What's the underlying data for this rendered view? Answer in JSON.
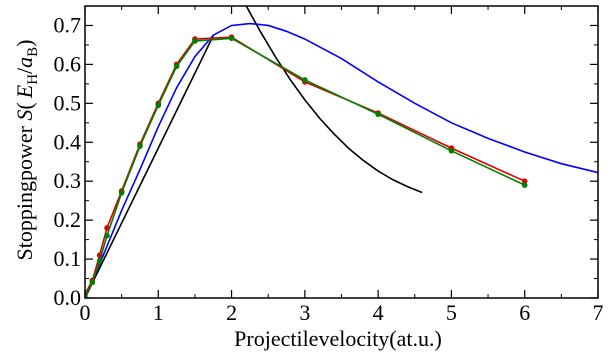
{
  "chart_data": {
    "type": "line",
    "xlabel": "Projectilevelocity(at.u.)",
    "ylabel_parts": {
      "prefix": "Stoppingpower  ",
      "S": "S",
      "open": "(",
      "E": "E",
      "E_sub": "H",
      "slash": "/",
      "a": "a",
      "a_sub": "B",
      "close": ")"
    },
    "xlim": [
      0,
      7
    ],
    "ylim": [
      0,
      0.75
    ],
    "x_ticks": [
      0,
      1,
      2,
      3,
      4,
      5,
      6,
      7
    ],
    "x_tick_labels": [
      "0",
      "1",
      "2",
      "3",
      "4",
      "5",
      "6",
      "7"
    ],
    "y_ticks": [
      0,
      0.1,
      0.2,
      0.3,
      0.4,
      0.5,
      0.6,
      0.7
    ],
    "y_tick_labels": [
      "0.0",
      "0.1",
      "0.2",
      "0.3",
      "0.4",
      "0.5",
      "0.6",
      "0.7"
    ],
    "grid": false,
    "series": [
      {
        "color": "#000000",
        "style": "line",
        "x": [
          0.0,
          0.2,
          0.4,
          0.6,
          0.8,
          1.0,
          1.2,
          1.4,
          1.6,
          1.75
        ],
        "y": [
          0.0,
          0.077,
          0.154,
          0.231,
          0.308,
          0.385,
          0.462,
          0.539,
          0.616,
          0.674
        ]
      },
      {
        "color": "#000000",
        "style": "line",
        "x": [
          2.2,
          2.4,
          2.6,
          2.8,
          3.0,
          3.2,
          3.4,
          3.6,
          3.8,
          4.0,
          4.2,
          4.4,
          4.6
        ],
        "y": [
          0.75,
          0.682,
          0.619,
          0.561,
          0.509,
          0.462,
          0.421,
          0.384,
          0.353,
          0.326,
          0.304,
          0.286,
          0.271
        ]
      },
      {
        "color": "#0000ff",
        "style": "line",
        "x": [
          0,
          0.25,
          0.5,
          0.75,
          1.0,
          1.25,
          1.5,
          1.75,
          2.0,
          2.25,
          2.5,
          2.75,
          3.0,
          3.5,
          4.0,
          4.5,
          5.0,
          5.5,
          6.0,
          6.5,
          7.0
        ],
        "y": [
          0,
          0.11,
          0.225,
          0.33,
          0.44,
          0.54,
          0.62,
          0.675,
          0.7,
          0.705,
          0.7,
          0.685,
          0.665,
          0.615,
          0.555,
          0.5,
          0.45,
          0.41,
          0.375,
          0.345,
          0.322
        ]
      },
      {
        "color": "#e00000",
        "style": "line+markers",
        "x": [
          0,
          0.1,
          0.2,
          0.3,
          0.5,
          0.75,
          1.0,
          1.25,
          1.5,
          2.0,
          3.0,
          4.0,
          5.0,
          6.0
        ],
        "y": [
          0.01,
          0.045,
          0.11,
          0.18,
          0.275,
          0.395,
          0.5,
          0.6,
          0.665,
          0.67,
          0.555,
          0.475,
          0.385,
          0.3
        ]
      },
      {
        "color": "#008000",
        "style": "line+markers",
        "x": [
          0,
          0.1,
          0.2,
          0.3,
          0.5,
          0.75,
          1.0,
          1.25,
          1.5,
          2.0,
          3.0,
          4.0,
          5.0,
          6.0
        ],
        "y": [
          0.005,
          0.04,
          0.095,
          0.16,
          0.27,
          0.39,
          0.495,
          0.595,
          0.66,
          0.667,
          0.56,
          0.472,
          0.378,
          0.29
        ]
      }
    ]
  }
}
